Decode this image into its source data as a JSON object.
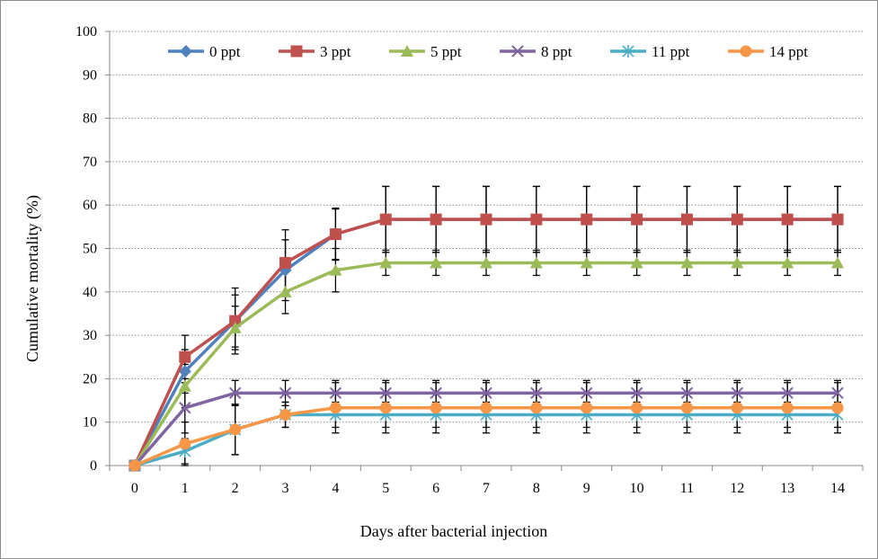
{
  "chart_data": {
    "type": "line",
    "title": "",
    "xlabel": "Days after bacterial injection",
    "ylabel": "Cumulative mortality (%)",
    "ylim": [
      0,
      100
    ],
    "yticks": [
      0,
      10,
      20,
      30,
      40,
      50,
      60,
      70,
      80,
      90,
      100
    ],
    "x": [
      0,
      1,
      2,
      3,
      4,
      5,
      6,
      7,
      8,
      9,
      10,
      11,
      12,
      13,
      14
    ],
    "grid": "horizontal dotted",
    "legend": "top",
    "series": [
      {
        "name": "0 ppt",
        "color": "#4F81BD",
        "marker": "diamond",
        "values": [
          0,
          21.7,
          33.3,
          45.0,
          53.3,
          56.7,
          56.7,
          56.7,
          56.7,
          56.7,
          56.7,
          56.7,
          56.7,
          56.7,
          56.7
        ],
        "error": [
          0,
          5,
          6,
          7,
          6,
          7.6,
          7.6,
          7.6,
          7.6,
          7.6,
          7.6,
          7.6,
          7.6,
          7.6,
          7.6
        ]
      },
      {
        "name": "3 ppt",
        "color": "#C0504D",
        "marker": "square",
        "values": [
          0,
          25.0,
          33.3,
          46.7,
          53.3,
          56.7,
          56.7,
          56.7,
          56.7,
          56.7,
          56.7,
          56.7,
          56.7,
          56.7,
          56.7
        ],
        "error": [
          0,
          5,
          7.6,
          7.6,
          5.8,
          7.6,
          7.6,
          7.6,
          7.6,
          7.6,
          7.6,
          7.6,
          7.6,
          7.6,
          7.6
        ]
      },
      {
        "name": "5 ppt",
        "color": "#9BBB59",
        "marker": "triangle",
        "values": [
          0,
          18.3,
          31.7,
          40.0,
          45.0,
          46.7,
          46.7,
          46.7,
          46.7,
          46.7,
          46.7,
          46.7,
          46.7,
          46.7,
          46.7
        ],
        "error": [
          0,
          5,
          5,
          5,
          5,
          2.9,
          2.9,
          2.9,
          2.9,
          2.9,
          2.9,
          2.9,
          2.9,
          2.9,
          2.9
        ]
      },
      {
        "name": "8 ppt",
        "color": "#8064A2",
        "marker": "x",
        "values": [
          0,
          13.3,
          16.7,
          16.7,
          16.7,
          16.7,
          16.7,
          16.7,
          16.7,
          16.7,
          16.7,
          16.7,
          16.7,
          16.7,
          16.7
        ],
        "error": [
          0,
          5.8,
          2.9,
          2.9,
          2.9,
          2.9,
          2.9,
          2.9,
          2.9,
          2.9,
          2.9,
          2.9,
          2.9,
          2.9,
          2.9
        ]
      },
      {
        "name": "11 ppt",
        "color": "#4BACC6",
        "marker": "star",
        "values": [
          0,
          3.3,
          8.3,
          11.7,
          11.7,
          11.7,
          11.7,
          11.7,
          11.7,
          11.7,
          11.7,
          11.7,
          11.7,
          11.7,
          11.7
        ],
        "error": [
          0,
          2.9,
          5.8,
          2.9,
          2.9,
          2.9,
          2.9,
          2.9,
          2.9,
          2.9,
          2.9,
          2.9,
          2.9,
          2.9,
          2.9
        ]
      },
      {
        "name": "14 ppt",
        "color": "#F79646",
        "marker": "circle",
        "values": [
          0,
          5.0,
          8.3,
          11.7,
          13.3,
          13.3,
          13.3,
          13.3,
          13.3,
          13.3,
          13.3,
          13.3,
          13.3,
          13.3,
          13.3
        ],
        "error": [
          0,
          5,
          5.8,
          2.9,
          5.8,
          5.8,
          5.8,
          5.8,
          5.8,
          5.8,
          5.8,
          5.8,
          5.8,
          5.8,
          5.8
        ]
      }
    ]
  }
}
